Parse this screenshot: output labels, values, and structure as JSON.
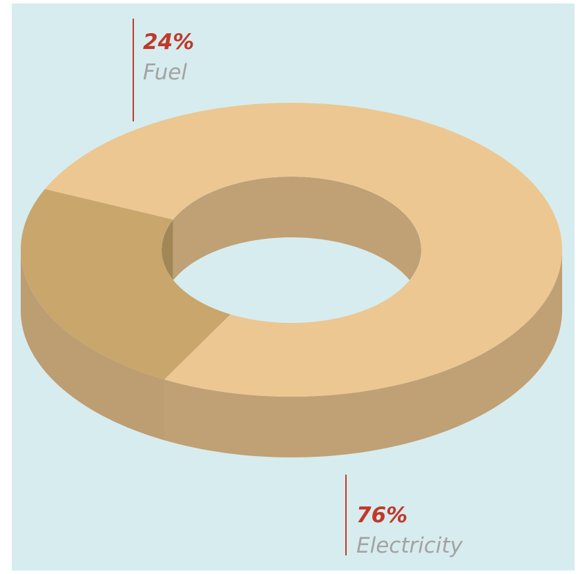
{
  "chart_data": {
    "type": "pie",
    "style": "3d-donut",
    "slices": [
      {
        "label": "Fuel",
        "value": 24,
        "value_label": "24%",
        "top_color": "#c9a66c",
        "inner_color": "#a38656",
        "side_color": "#bd9d72"
      },
      {
        "label": "Electricity",
        "value": 76,
        "value_label": "76%",
        "top_color": "#ecc791",
        "inner_color": "#c0a075",
        "side_color": "#c0a075"
      }
    ],
    "label_value_color": "#c0392b",
    "label_text_color": "#a3a3a3",
    "leader_color": "#c0392b",
    "background": "#d7ecee"
  }
}
